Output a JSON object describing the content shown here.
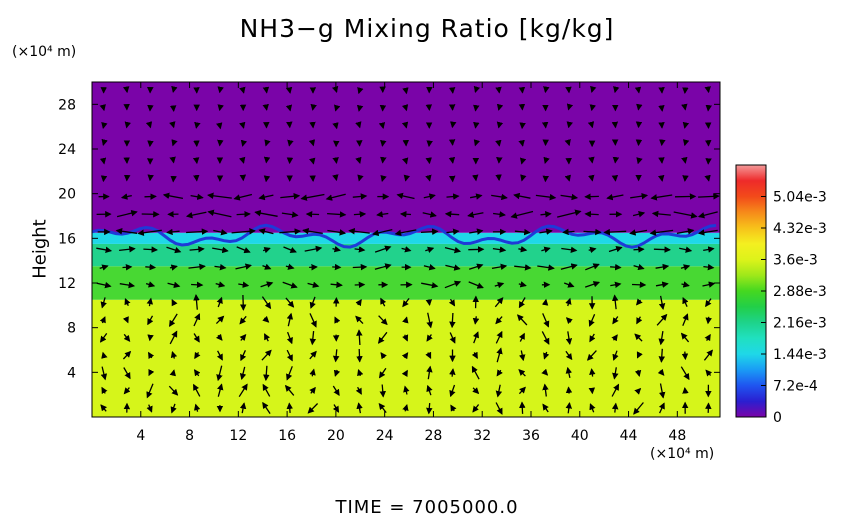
{
  "chart_data": {
    "type": "heatmap",
    "title": "NH3−g Mixing Ratio [kg/kg]",
    "ylabel": "Height",
    "y_unit": "(×10⁴ m)",
    "x_unit": "(×10⁴ m)",
    "footer": "TIME  =  7005000.0",
    "xlim": [
      0,
      51.5
    ],
    "ylim": [
      0,
      30
    ],
    "x_ticks": [
      4,
      8,
      12,
      16,
      20,
      24,
      28,
      32,
      36,
      40,
      44,
      48
    ],
    "x_tick_labels": [
      "4",
      "8",
      "12",
      "16",
      "20",
      "24",
      "28",
      "32",
      "36",
      "40",
      "44",
      "48"
    ],
    "y_ticks": [
      4,
      8,
      12,
      16,
      20,
      24,
      28
    ],
    "y_tick_labels": [
      "4",
      "8",
      "12",
      "16",
      "20",
      "24",
      "28"
    ],
    "colorbar": {
      "min": 0,
      "max": 0.00576,
      "ticks": [
        0,
        0.00072,
        0.00144,
        0.00216,
        0.00288,
        0.0036,
        0.00432,
        0.00504
      ],
      "tick_labels": [
        "0",
        "7.2e-4",
        "1.44e-3",
        "2.16e-3",
        "2.88e-3",
        "3.6e-3",
        "4.32e-3",
        "5.04e-3"
      ],
      "stops": [
        {
          "value": 0.0,
          "color": "#7a04a8"
        },
        {
          "value": 0.00036,
          "color": "#2a1fd0"
        },
        {
          "value": 0.00072,
          "color": "#1f55f0"
        },
        {
          "value": 0.00108,
          "color": "#1a9cf5"
        },
        {
          "value": 0.00144,
          "color": "#1fd8e8"
        },
        {
          "value": 0.0018,
          "color": "#20e0c0"
        },
        {
          "value": 0.00216,
          "color": "#1ed38a"
        },
        {
          "value": 0.00252,
          "color": "#22cf48"
        },
        {
          "value": 0.00288,
          "color": "#45d820"
        },
        {
          "value": 0.00324,
          "color": "#9fe81a"
        },
        {
          "value": 0.0036,
          "color": "#ddf31a"
        },
        {
          "value": 0.00396,
          "color": "#f4f020"
        },
        {
          "value": 0.00432,
          "color": "#f7c21a"
        },
        {
          "value": 0.00468,
          "color": "#f68a1a"
        },
        {
          "value": 0.00504,
          "color": "#f24a1a"
        },
        {
          "value": 0.0054,
          "color": "#ee2a2a"
        },
        {
          "value": 0.00576,
          "color": "#f49a9a"
        }
      ]
    },
    "field_regions": [
      {
        "height_range": [
          0,
          10.5
        ],
        "value": 0.0037,
        "color": "#d6f51a"
      },
      {
        "height_range": [
          10.5,
          13.5
        ],
        "value": 0.0029,
        "color": "#48d833"
      },
      {
        "height_range": [
          13.5,
          15.5
        ],
        "value": 0.0022,
        "color": "#22d28c"
      },
      {
        "height_range": [
          15.5,
          16.5
        ],
        "value": 0.0014,
        "color": "#1fd8e8"
      },
      {
        "height_range": [
          16.5,
          30
        ],
        "value": 0.0,
        "color": "#7a04a8"
      }
    ],
    "overlay": "wind velocity vectors (arrows)",
    "colors": {
      "wind_arrow": "#000000"
    }
  }
}
